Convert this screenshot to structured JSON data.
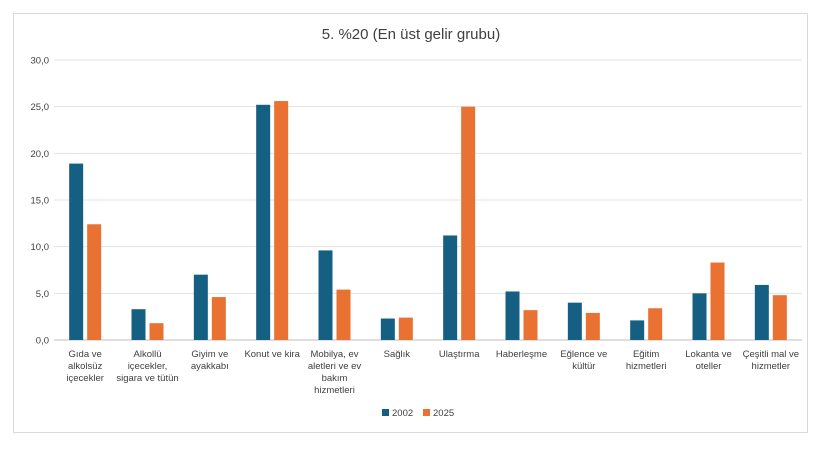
{
  "chart_data": {
    "type": "bar",
    "title": "5. %20 (En üst gelir grubu)",
    "xlabel": "",
    "ylabel": "",
    "ylim": [
      0,
      30
    ],
    "yticks": [
      "0,0",
      "5,0",
      "10,0",
      "15,0",
      "20,0",
      "25,0",
      "30,0"
    ],
    "grid": true,
    "legend_position": "bottom",
    "categories": [
      [
        "Gıda ve",
        "alkolsüz",
        "içecekler"
      ],
      [
        "Alkollü",
        "içecekler,",
        "sigara ve tütün"
      ],
      [
        "Giyim ve",
        "ayakkabı"
      ],
      [
        "Konut ve kira"
      ],
      [
        "Mobilya, ev",
        "aletleri ve ev",
        "bakım",
        "hizmetleri"
      ],
      [
        "Sağlık"
      ],
      [
        "Ulaştırma"
      ],
      [
        "Haberleşme"
      ],
      [
        "Eğlence ve",
        "kültür"
      ],
      [
        "Eğitim",
        "hizmetleri"
      ],
      [
        "Lokanta ve",
        "oteller"
      ],
      [
        "Çeşitli mal ve",
        "hizmetler"
      ]
    ],
    "series": [
      {
        "name": "2002",
        "color": "#156082",
        "values": [
          18.9,
          3.3,
          7.0,
          25.2,
          9.6,
          2.3,
          11.2,
          5.2,
          4.0,
          2.1,
          5.0,
          5.9
        ]
      },
      {
        "name": "2025",
        "color": "#E97132",
        "values": [
          12.4,
          1.8,
          4.6,
          25.6,
          5.4,
          2.4,
          25.0,
          3.2,
          2.9,
          3.4,
          8.3,
          4.8
        ]
      }
    ]
  }
}
